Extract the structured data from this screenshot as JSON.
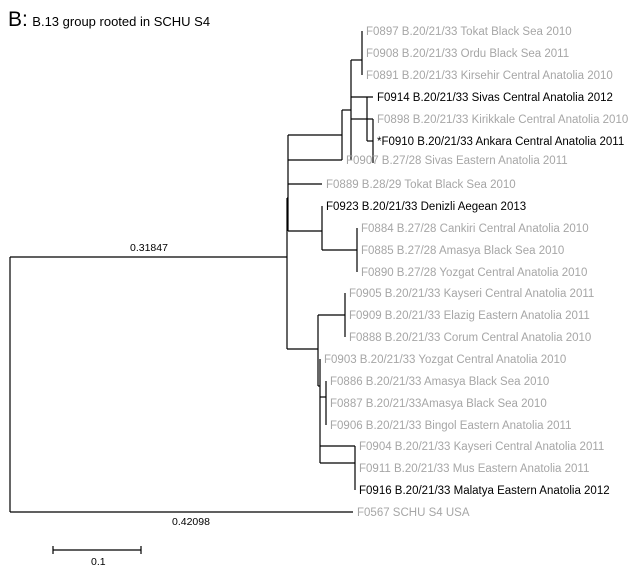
{
  "figure": {
    "panel_letter": "B:",
    "title": "B.13 group rooted in SCHU S4"
  },
  "tree": {
    "leaves": [
      {
        "label": "F0897 B.20/21/33 Tokat Black Sea 2010",
        "highlight": false
      },
      {
        "label": "F0908 B.20/21/33 Ordu Black Sea 2011",
        "highlight": false
      },
      {
        "label": "F0891 B.20/21/33 Kirsehir Central Anatolia 2010",
        "highlight": false
      },
      {
        "label": "F0914 B.20/21/33 Sivas Central Anatolia 2012",
        "highlight": true
      },
      {
        "label": "F0898 B.20/21/33 Kirikkale Central Anatolia 2010",
        "highlight": false
      },
      {
        "label": "*F0910 B.20/21/33 Ankara Central Anatolia 2011",
        "highlight": true
      },
      {
        "label": "F0907 B.27/28 Sivas Eastern Anatolia 2011",
        "highlight": false
      },
      {
        "label": "F0889 B.28/29 Tokat Black Sea 2010",
        "highlight": false
      },
      {
        "label": "F0923 B.20/21/33 Denizli Aegean 2013",
        "highlight": true
      },
      {
        "label": "F0884 B.27/28 Cankiri Central Anatolia 2010",
        "highlight": false
      },
      {
        "label": "F0885 B.27/28 Amasya Black Sea 2010",
        "highlight": false
      },
      {
        "label": "F0890 B.27/28 Yozgat Central Anatolia 2010",
        "highlight": false
      },
      {
        "label": "F0905 B.20/21/33 Kayseri Central Anatolia 2011",
        "highlight": false
      },
      {
        "label": "F0909 B.20/21/33 Elazig Eastern Anatolia 2011",
        "highlight": false
      },
      {
        "label": "F0888 B.20/21/33 Corum Central Anatolia 2010",
        "highlight": false
      },
      {
        "label": "F0903 B.20/21/33 Yozgat Central Anatolia 2010",
        "highlight": false
      },
      {
        "label": "F0886 B.20/21/33 Amasya Black Sea 2010",
        "highlight": false
      },
      {
        "label": "F0887 B.20/21/33Amasya Black Sea 2010",
        "highlight": false
      },
      {
        "label": "F0906 B.20/21/33 Bingol Eastern Anatolia 2011",
        "highlight": false
      },
      {
        "label": "F0904 B.20/21/33 Kayseri Central Anatolia 2011",
        "highlight": false
      },
      {
        "label": "F0911 B.20/21/33 Mus Eastern Anatolia 2011",
        "highlight": false
      },
      {
        "label": "F0916 B.20/21/33 Malatya Eastern Anatolia 2012",
        "highlight": true
      },
      {
        "label": "F0567 SCHU S4 USA",
        "highlight": false
      }
    ],
    "branch_lengths": {
      "ingroup_branch": "0.31847",
      "outgroup_branch": "0.42098"
    },
    "scale_bar": {
      "label": "0.1",
      "value": 0.1
    }
  },
  "colors": {
    "highlight_text": "#000000",
    "normal_text": "#a6a6a6",
    "branch_line": "#000000"
  }
}
